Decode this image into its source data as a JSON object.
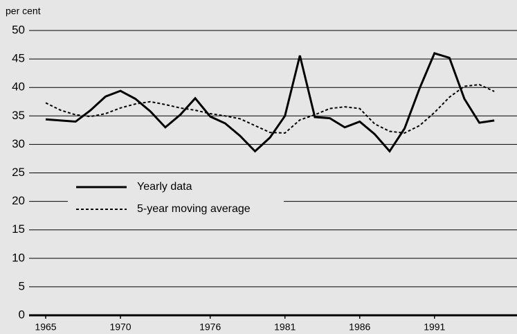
{
  "chart_data": {
    "type": "line",
    "y_axis_label": "per cent",
    "x": [
      1965,
      1966,
      1967,
      1968,
      1969,
      1970,
      1971,
      1972,
      1973,
      1974,
      1975,
      1976,
      1977,
      1978,
      1979,
      1980,
      1981,
      1982,
      1983,
      1984,
      1985,
      1986,
      1987,
      1988,
      1989,
      1990,
      1991,
      1992,
      1993,
      1994,
      1995
    ],
    "series": [
      {
        "name": "Yearly data",
        "color": "#000000",
        "dash": "solid",
        "values": [
          34.4,
          34.2,
          34.0,
          36.0,
          38.4,
          39.4,
          38.0,
          35.8,
          33.0,
          35.2,
          38.1,
          34.9,
          33.7,
          31.5,
          28.8,
          31.2,
          35.0,
          45.6,
          34.8,
          34.6,
          33.0,
          34.0,
          31.8,
          28.8,
          32.8,
          39.8,
          46.0,
          45.2,
          38.0,
          33.8,
          34.2
        ]
      },
      {
        "name": "5-year moving average",
        "color": "#000000",
        "dash": "dotted",
        "values": [
          37.3,
          36.0,
          35.2,
          34.9,
          35.4,
          36.4,
          37.1,
          37.5,
          37.0,
          36.4,
          36.0,
          35.4,
          35.0,
          34.5,
          33.3,
          32.1,
          32.0,
          34.3,
          35.2,
          36.3,
          36.6,
          36.3,
          33.6,
          32.3,
          32.0,
          33.3,
          35.6,
          38.3,
          40.2,
          40.5,
          39.3
        ]
      }
    ],
    "xlim": [
      1965,
      1995.5
    ],
    "xticks": [
      1965,
      1970,
      1976,
      1981,
      1986,
      1991
    ],
    "ylim": [
      0,
      50
    ],
    "yticks": [
      0,
      5,
      10,
      15,
      20,
      25,
      30,
      35,
      40,
      45,
      50
    ],
    "grid": true
  }
}
